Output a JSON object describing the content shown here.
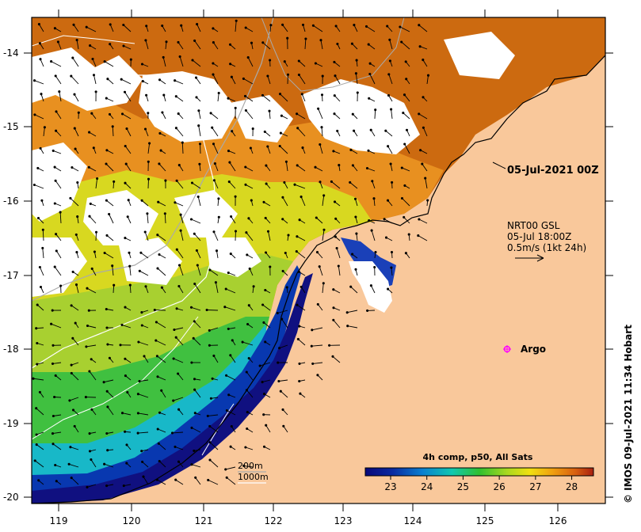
{
  "map": {
    "lat_ticks": [
      "-14",
      "-15",
      "-16",
      "-17",
      "-18",
      "-19",
      "-20"
    ],
    "lon_ticks": [
      "119",
      "120",
      "121",
      "122",
      "123",
      "124",
      "125",
      "126"
    ],
    "timestamp_label": "05-Jul-2021 00Z",
    "current_legend": {
      "line1": "NRT00 GSL",
      "line2": "05-Jul 18:00Z",
      "line3": "0.5m/s (1kt 24h)"
    },
    "argo": {
      "label": "Argo",
      "color": "#ff00ff"
    },
    "depth_legend": {
      "line1": "200m",
      "line2": "1000m"
    },
    "colorbar": {
      "title": "4h comp, p50, All Sats",
      "ticks": [
        "23",
        "24",
        "25",
        "26",
        "27",
        "28"
      ],
      "min": 22.3,
      "max": 28.6
    },
    "credit": "© IMOS 09-Jul-2021 11:34 Hobart",
    "colors": {
      "land": "#f9c89b",
      "frame": "#000000",
      "cloud": "#ffffff"
    }
  }
}
